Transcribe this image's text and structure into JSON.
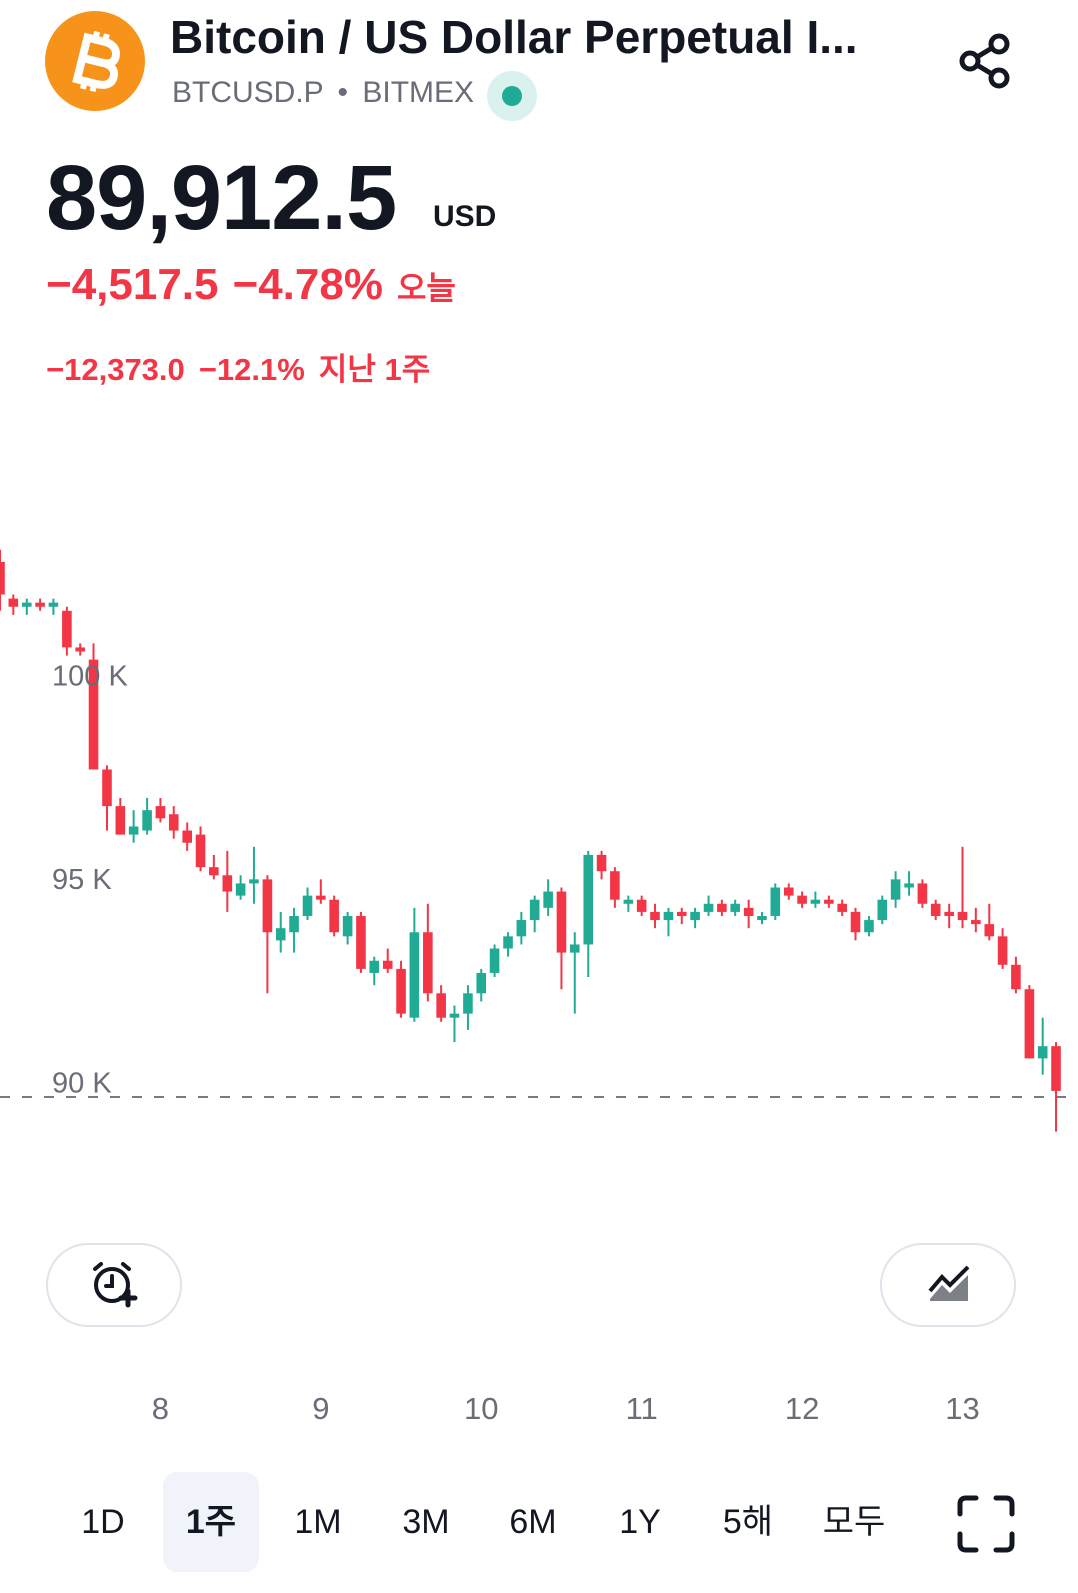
{
  "header": {
    "title": "Bitcoin / US Dollar Perpetual I...",
    "symbol": "BTCUSD.P",
    "separator": "•",
    "exchange": "BITMEX"
  },
  "quote": {
    "price": "89,912.5",
    "currency": "USD",
    "change": "−4,517.5",
    "change_percent": "−4.78%",
    "change_period": "오늘",
    "week_change": "−12,373.0",
    "week_change_percent": "−12.1%",
    "week_period": "지난 1주"
  },
  "chart_data": {
    "type": "candlestick",
    "up_color": "#22ab94",
    "down_color": "#f23645",
    "x": [
      7,
      7.083,
      7.167,
      7.25,
      7.333,
      7.417,
      7.5,
      7.583,
      7.667,
      7.75,
      7.833,
      7.917,
      8,
      8.083,
      8.167,
      8.25,
      8.333,
      8.417,
      8.5,
      8.583,
      8.667,
      8.75,
      8.833,
      8.917,
      9,
      9.083,
      9.167,
      9.25,
      9.333,
      9.417,
      9.5,
      9.583,
      9.667,
      9.75,
      9.833,
      9.917,
      10,
      10.083,
      10.167,
      10.25,
      10.333,
      10.417,
      10.5,
      10.583,
      10.667,
      10.75,
      10.833,
      10.917,
      11,
      11.083,
      11.167,
      11.25,
      11.333,
      11.417,
      11.5,
      11.583,
      11.667,
      11.75,
      11.833,
      11.917,
      12,
      12.083,
      12.167,
      12.25,
      12.333,
      12.417,
      12.5,
      12.583,
      12.667,
      12.75,
      12.833,
      12.917,
      13,
      13.083,
      13.167,
      13.25,
      13.333,
      13.417,
      13.5,
      13.583
    ],
    "open": [
      103.0,
      102.1,
      101.9,
      102.0,
      101.9,
      101.8,
      100.9,
      100.6,
      97.9,
      97.0,
      96.3,
      96.4,
      97.0,
      96.8,
      96.4,
      96.3,
      95.5,
      95.3,
      94.8,
      95.1,
      95.2,
      93.7,
      93.9,
      94.3,
      94.8,
      94.7,
      93.8,
      94.3,
      92.9,
      93.2,
      93.0,
      91.8,
      93.9,
      92.4,
      91.8,
      91.9,
      92.4,
      92.9,
      93.5,
      93.8,
      94.2,
      94.5,
      94.9,
      93.4,
      93.6,
      95.8,
      95.4,
      94.6,
      94.7,
      94.4,
      94.2,
      94.4,
      94.2,
      94.4,
      94.6,
      94.4,
      94.5,
      94.2,
      94.3,
      95.0,
      94.8,
      94.6,
      94.7,
      94.6,
      94.4,
      93.9,
      94.2,
      94.7,
      95.0,
      95.1,
      94.6,
      94.4,
      94.4,
      94.2,
      94.1,
      93.8,
      93.1,
      92.5,
      90.8,
      91.1
    ],
    "high": [
      103.3,
      102.2,
      102.1,
      102.1,
      102.1,
      101.9,
      101.0,
      101.0,
      98.0,
      97.2,
      96.9,
      97.2,
      97.2,
      97.0,
      96.6,
      96.5,
      95.8,
      95.9,
      95.3,
      96.0,
      95.3,
      94.4,
      94.5,
      95.0,
      95.2,
      94.8,
      94.4,
      94.4,
      93.3,
      93.5,
      93.2,
      94.5,
      94.6,
      92.6,
      92.1,
      92.6,
      93.0,
      93.6,
      93.9,
      94.4,
      94.8,
      95.2,
      95.0,
      93.9,
      95.9,
      95.9,
      95.5,
      94.8,
      94.8,
      94.6,
      94.5,
      94.5,
      94.5,
      94.8,
      94.7,
      94.7,
      94.7,
      94.4,
      95.1,
      95.1,
      94.9,
      94.9,
      94.8,
      94.7,
      94.5,
      94.3,
      94.8,
      95.4,
      95.4,
      95.2,
      94.7,
      94.6,
      96.0,
      94.5,
      94.6,
      94.0,
      93.3,
      92.6,
      91.8,
      91.2
    ],
    "low": [
      101.8,
      101.7,
      101.7,
      101.8,
      101.7,
      100.7,
      100.7,
      97.9,
      96.4,
      96.3,
      96.1,
      96.3,
      96.6,
      96.2,
      95.9,
      95.4,
      95.2,
      94.4,
      94.7,
      94.6,
      92.4,
      93.4,
      93.4,
      94.2,
      94.6,
      93.8,
      93.6,
      92.9,
      92.6,
      92.9,
      91.8,
      91.7,
      92.2,
      91.7,
      91.2,
      91.5,
      92.2,
      92.8,
      93.3,
      93.6,
      93.9,
      94.3,
      92.5,
      91.9,
      92.8,
      95.2,
      94.5,
      94.4,
      94.3,
      94.0,
      93.8,
      94.1,
      94.0,
      94.3,
      94.3,
      94.3,
      94.0,
      94.1,
      94.2,
      94.7,
      94.5,
      94.5,
      94.5,
      94.3,
      93.7,
      93.8,
      94.1,
      94.5,
      94.8,
      94.5,
      94.2,
      94.0,
      94.0,
      93.9,
      93.7,
      93.0,
      92.4,
      90.8,
      90.4,
      89.0
    ],
    "close": [
      102.2,
      101.9,
      102.0,
      101.9,
      102.0,
      100.9,
      100.8,
      97.9,
      97.0,
      96.3,
      96.5,
      96.9,
      96.7,
      96.4,
      96.1,
      95.5,
      95.3,
      94.9,
      95.1,
      95.2,
      93.9,
      94.0,
      94.3,
      94.8,
      94.7,
      93.9,
      94.3,
      93.0,
      93.2,
      93.0,
      91.9,
      93.9,
      92.4,
      91.8,
      91.9,
      92.4,
      92.9,
      93.5,
      93.8,
      94.2,
      94.7,
      94.9,
      93.4,
      93.6,
      95.8,
      95.4,
      94.7,
      94.7,
      94.4,
      94.2,
      94.4,
      94.3,
      94.4,
      94.6,
      94.4,
      94.6,
      94.3,
      94.3,
      95.0,
      94.8,
      94.6,
      94.7,
      94.6,
      94.4,
      93.9,
      94.2,
      94.7,
      95.2,
      95.1,
      94.6,
      94.3,
      94.3,
      94.2,
      94.1,
      93.8,
      93.1,
      92.5,
      90.8,
      91.1,
      90.0
    ],
    "price_line": 89.85,
    "xlim": [
      7,
      13.72
    ],
    "ylim": [
      87.32,
      103.54
    ],
    "xticks": [
      8,
      9,
      10,
      11,
      12,
      13
    ],
    "yticks": [
      {
        "value": 90,
        "label": "90 K"
      },
      {
        "value": 95,
        "label": "95 K"
      },
      {
        "value": 100,
        "label": "100 K"
      }
    ]
  },
  "tabs": {
    "items": [
      "1D",
      "1주",
      "1M",
      "3M",
      "6M",
      "1Y",
      "5해",
      "모두"
    ],
    "active": 1
  }
}
